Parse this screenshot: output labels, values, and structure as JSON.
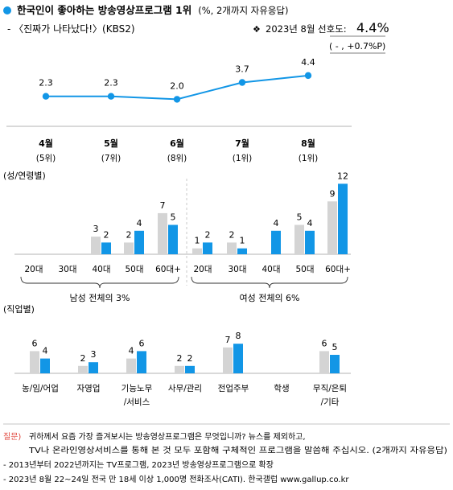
{
  "header": {
    "title_main": "한국인이 좋아하는 방송영상프로그램 1위",
    "title_unit": "(%, 2개까지 자유응답)",
    "subtitle": "- 〈진짜가 나타났다!〉(KBS2)",
    "marker": "❖",
    "pref_label": "2023년 8월 선호도:",
    "pref_value": "4.4%",
    "pref_change": "( - , +0.7%P)"
  },
  "colors": {
    "blue": "#1296e6",
    "gray": "#d4d4d4",
    "axis": "#9a9a9a",
    "note_red": "#e0463c"
  },
  "chart_data": [
    {
      "type": "line",
      "categories": [
        "4월",
        "5월",
        "6월",
        "7월",
        "8월"
      ],
      "ranks": [
        "(5위)",
        "(7위)",
        "(8위)",
        "(1위)",
        "(1위)"
      ],
      "values": [
        2.3,
        2.3,
        2.0,
        3.7,
        4.4
      ],
      "ylim": [
        0,
        5
      ]
    },
    {
      "type": "bar",
      "section_label": "(성/연령별)",
      "categories": [
        "20대",
        "30대",
        "40대",
        "50대",
        "60대+",
        "20대",
        "30대",
        "40대",
        "50대",
        "60대+"
      ],
      "groups": [
        {
          "label": "남성 전체의 3%",
          "range": [
            0,
            4
          ]
        },
        {
          "label": "여성 전체의 6%",
          "range": [
            5,
            9
          ]
        }
      ],
      "series": [
        {
          "values": [
            null,
            null,
            3,
            2,
            7,
            1,
            2,
            null,
            5,
            9
          ]
        },
        {
          "values": [
            null,
            null,
            2,
            4,
            5,
            2,
            1,
            4,
            4,
            12
          ]
        }
      ],
      "ylim": [
        0,
        14
      ]
    },
    {
      "type": "bar",
      "section_label": "(직업별)",
      "categories": [
        [
          "농/임/어업"
        ],
        [
          "자영업"
        ],
        [
          "기능노무",
          "/서비스"
        ],
        [
          "사무/관리"
        ],
        [
          "전업주부"
        ],
        [
          "학생"
        ],
        [
          "무직/은퇴",
          "/기타"
        ]
      ],
      "series": [
        {
          "values": [
            6,
            2,
            4,
            2,
            7,
            null,
            6
          ]
        },
        {
          "values": [
            4,
            3,
            6,
            2,
            8,
            null,
            5
          ]
        }
      ],
      "ylim": [
        0,
        11
      ]
    }
  ],
  "footer": {
    "question_label": "질문)",
    "question_line1": "귀하께서 요즘 가장 즐겨보시는 방송영상프로그램은 무엇입니까? 뉴스를 제외하고,",
    "question_line2": "TV나 온라인영상서비스를 통해 본 것 모두 포함해 구체적인 프로그램을 말씀해 주십시오. (2개까지 자유응답)",
    "note1": "- 2013년부터 2022년까지는 TV프로그램, 2023년 방송영상프로그램으로 확장",
    "note2": "- 2023년 8월 22~24일 전국 만 18세 이상 1,000명 전화조사(CATI). 한국갤럽 www.gallup.co.kr"
  }
}
